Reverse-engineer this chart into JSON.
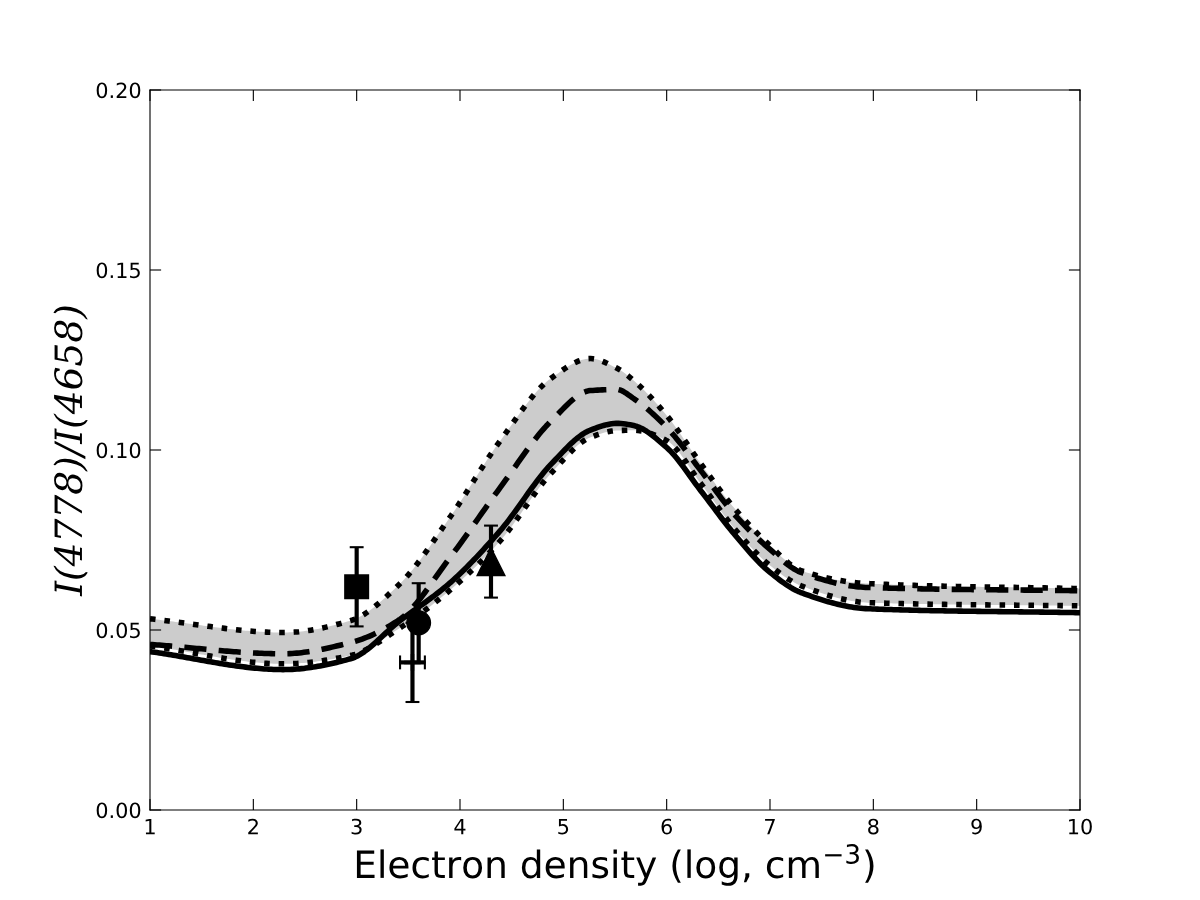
{
  "chart_data": {
    "type": "line",
    "xlabel": "Electron density (log, cm$^{−3}$)",
    "ylabel": "I(4778)/I(4658)",
    "xlim": [
      1,
      10
    ],
    "xticks": [
      1,
      2,
      3,
      4,
      5,
      6,
      7,
      8,
      9,
      10
    ],
    "ylim": [
      0,
      0.2
    ],
    "yticks": [
      {
        "value": 0,
        "label": "0.00"
      },
      {
        "value": 0.05,
        "label": "0.05"
      },
      {
        "value": 0.1,
        "label": "0.10"
      },
      {
        "value": 0.15,
        "label": "0.15"
      },
      {
        "value": 0.2,
        "label": "0.20"
      }
    ],
    "grid": false,
    "legend": false,
    "x": [
      1,
      2.29,
      2.94,
      3.42,
      3.9,
      4.39,
      4.88,
      5.26,
      5.52,
      5.68,
      6.0,
      6.33,
      6.65,
      6.98,
      7.3,
      7.95,
      10
    ],
    "series": [
      {
        "color": "#000000",
        "line_style": "dotted",
        "values": [
          0.0531,
          0.0493,
          0.0526,
          0.0629,
          0.0812,
          0.1026,
          0.1199,
          0.1254,
          0.1227,
          0.1193,
          0.1096,
          0.0962,
          0.084,
          0.074,
          0.0665,
          0.0629,
          0.0615
        ]
      },
      {
        "color": "#000000",
        "line_style": "dotted",
        "values": [
          0.0456,
          0.0406,
          0.0429,
          0.0506,
          0.061,
          0.0748,
          0.0935,
          0.1035,
          0.1054,
          0.1055,
          0.1026,
          0.0907,
          0.0784,
          0.0684,
          0.0623,
          0.0576,
          0.0567
        ]
      },
      {
        "color": "#000000",
        "line_style": "dashed",
        "values": [
          0.046,
          0.0434,
          0.0465,
          0.053,
          0.07,
          0.0896,
          0.108,
          0.1165,
          0.1168,
          0.1143,
          0.1063,
          0.0943,
          0.0823,
          0.0729,
          0.066,
          0.0618,
          0.0609
        ],
        "lower": [
          0.0456,
          0.0406,
          0.0429,
          0.0506,
          0.061,
          0.0748,
          0.0935,
          0.1035,
          0.1054,
          0.1055,
          0.1026,
          0.0907,
          0.0784,
          0.0684,
          0.0623,
          0.0576,
          0.0567
        ],
        "upper": [
          0.0531,
          0.0493,
          0.0526,
          0.0629,
          0.0812,
          0.1026,
          0.1199,
          0.1254,
          0.1227,
          0.1193,
          0.1096,
          0.0962,
          0.084,
          0.074,
          0.0665,
          0.0629,
          0.0615
        ]
      },
      {
        "color": "#000000",
        "line_style": "solid",
        "values": [
          0.044,
          0.039,
          0.042,
          0.0526,
          0.063,
          0.0776,
          0.096,
          0.1055,
          0.1074,
          0.1068,
          0.1007,
          0.0887,
          0.0768,
          0.0665,
          0.0604,
          0.0559,
          0.0548
        ]
      },
      {
        "type": "scatter",
        "color": "#000000",
        "marker": "square",
        "x": [
          3
        ],
        "values": [
          0.062
        ],
        "errors": [
          0.011
        ]
      },
      {
        "type": "scatter",
        "color": "#000000",
        "marker": "cross",
        "x": [
          3.54
        ],
        "values": [
          0.041
        ],
        "errors": [
          0.011
        ],
        "xerrors": [
          0.12
        ]
      },
      {
        "type": "scatter",
        "color": "#000000",
        "marker": "circle",
        "x": [
          3.6
        ],
        "values": [
          0.052
        ],
        "errors": [
          0.011
        ]
      },
      {
        "type": "scatter",
        "color": "#000000",
        "marker": "triangle",
        "x": [
          4.3
        ],
        "values": [
          0.069
        ],
        "errors": [
          0.01
        ]
      }
    ]
  }
}
